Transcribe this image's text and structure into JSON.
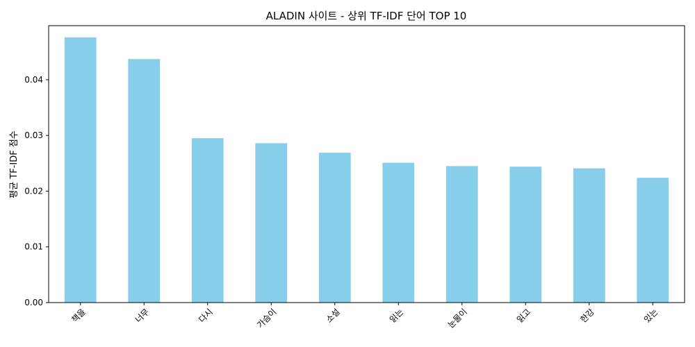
{
  "chart_data": {
    "type": "bar",
    "title": "ALADIN 사이트 - 상위 TF-IDF 단어 TOP 10",
    "xlabel": "",
    "ylabel": "평균 TF-IDF 점수",
    "categories": [
      "책을",
      "너무",
      "다시",
      "가슴이",
      "소설",
      "읽는",
      "눈물이",
      "읽고",
      "한강",
      "있는"
    ],
    "values": [
      0.0476,
      0.0437,
      0.0295,
      0.0286,
      0.0269,
      0.0251,
      0.0245,
      0.0244,
      0.0241,
      0.0224
    ],
    "ylim": [
      0,
      0.0497
    ],
    "yticks": [
      0.0,
      0.01,
      0.02,
      0.03,
      0.04
    ],
    "ytick_labels": [
      "0.00",
      "0.01",
      "0.02",
      "0.03",
      "0.04"
    ],
    "bar_color": "#87ceeb",
    "grid": false,
    "legend": "none"
  }
}
